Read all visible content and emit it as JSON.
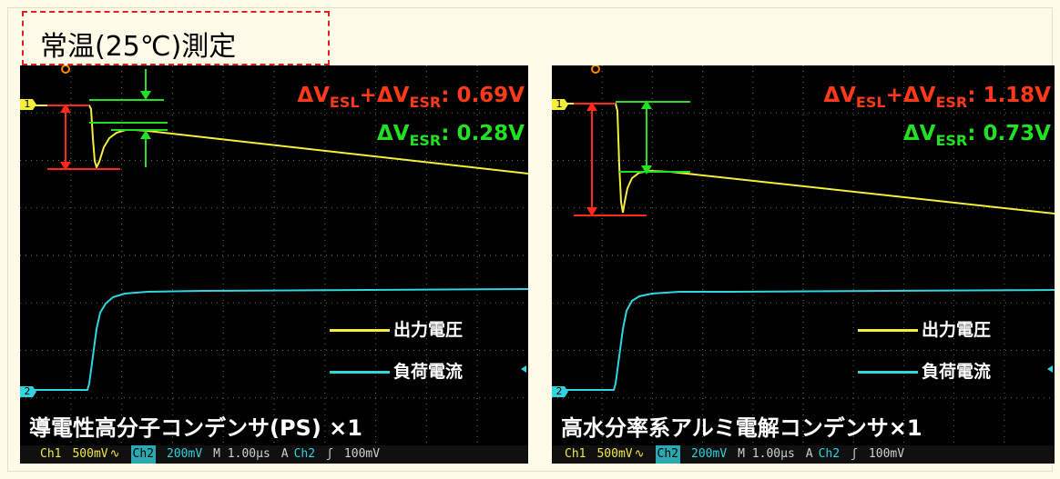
{
  "title": "常温(25℃)測定",
  "panels": [
    {
      "id": "left",
      "annotation_total_prefix": "ΔV",
      "annotation_total_sub1": "ESL",
      "annotation_total_mid": "+ΔV",
      "annotation_total_sub2": "ESR",
      "annotation_total_value": ": 0.69V",
      "annotation_esr_prefix": "ΔV",
      "annotation_esr_sub": "ESR",
      "annotation_esr_value": ": 0.28V",
      "legend_output": "出力電圧",
      "legend_load": "負荷電流",
      "caption": "導電性高分子コンデンサ(PS) ×1",
      "status": {
        "ch1": "Ch1",
        "ch1_scale": "500mV",
        "ch1_coupling": "∿",
        "ch2": "Ch2",
        "ch2_scale": "200mV",
        "timebase": "M 1.00µs",
        "trigger": "A",
        "trigger_ch": "Ch2",
        "trigger_slope": "ʃ",
        "trigger_level": "100mV"
      },
      "marker_1": "1",
      "marker_2": "2"
    },
    {
      "id": "right",
      "annotation_total_prefix": "ΔV",
      "annotation_total_sub1": "ESL",
      "annotation_total_mid": "+ΔV",
      "annotation_total_sub2": "ESR",
      "annotation_total_value": ": 1.18V",
      "annotation_esr_prefix": "ΔV",
      "annotation_esr_sub": "ESR",
      "annotation_esr_value": ": 0.73V",
      "legend_output": "出力電圧",
      "legend_load": "負荷電流",
      "caption": "高水分率系アルミ電解コンデンサ×1",
      "status": {
        "ch1": "Ch1",
        "ch1_scale": "500mV",
        "ch1_coupling": "∿",
        "ch2": "Ch2",
        "ch2_scale": "200mV",
        "timebase": "M 1.00µs",
        "trigger": "A",
        "trigger_ch": "Ch2",
        "trigger_slope": "ʃ",
        "trigger_level": "100mV"
      },
      "marker_1": "1",
      "marker_2": "2"
    }
  ],
  "colors": {
    "output_voltage": "#f5ef3a",
    "load_current": "#2fd6e0",
    "esl_esr_marker": "#ff2a1a",
    "esr_marker": "#22e022",
    "grid": "#6a6a6a"
  }
}
